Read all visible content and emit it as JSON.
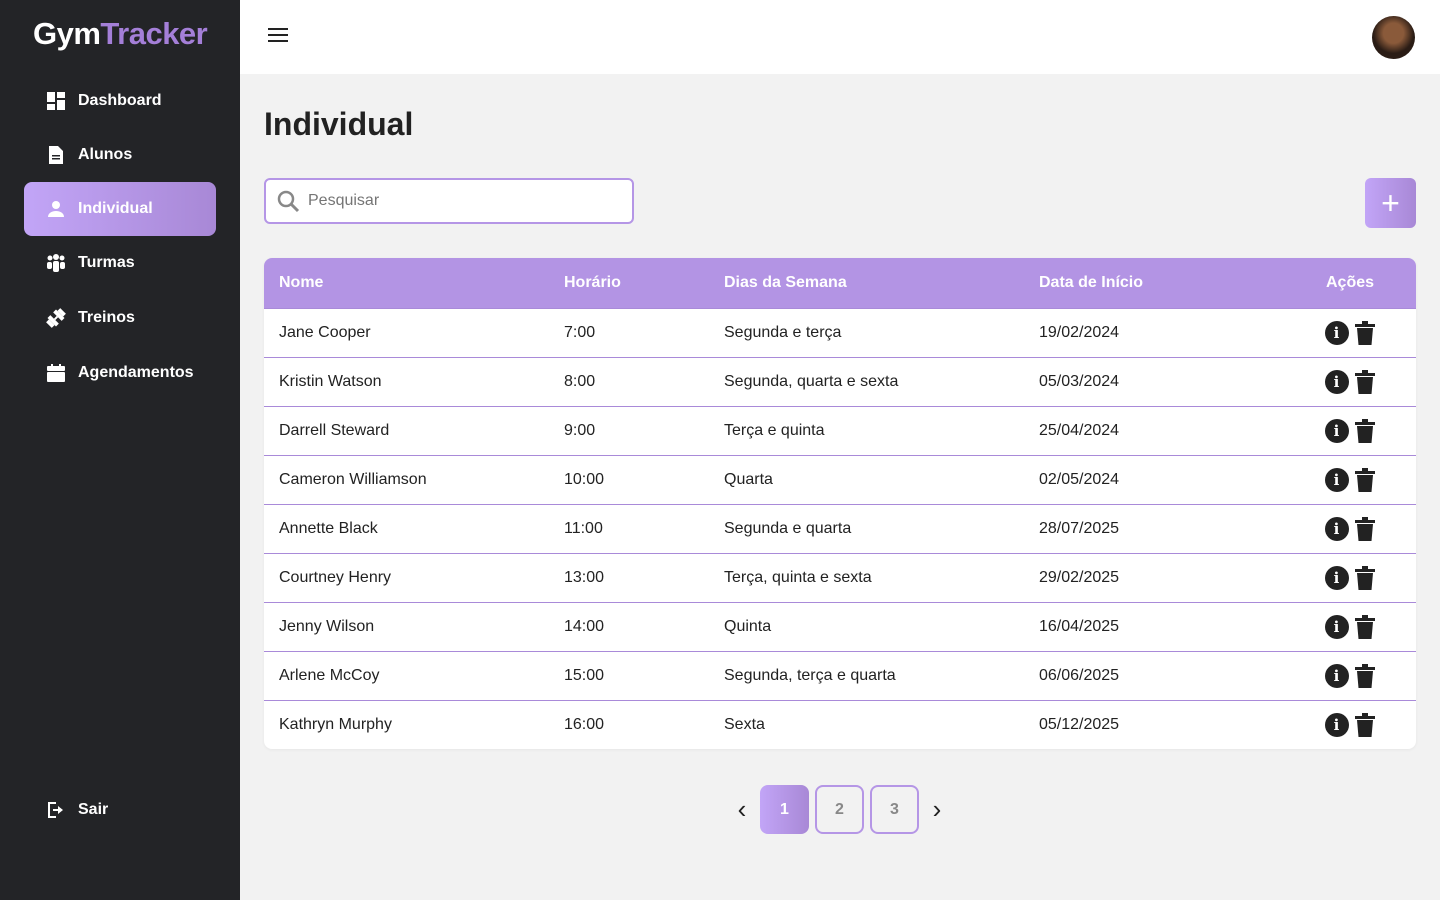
{
  "app": {
    "logo_main": "Gym",
    "logo_accent": "Tracker"
  },
  "sidebar": {
    "items": [
      {
        "label": "Dashboard",
        "icon": "dashboard-icon"
      },
      {
        "label": "Alunos",
        "icon": "document-icon"
      },
      {
        "label": "Individual",
        "icon": "person-icon",
        "active": true
      },
      {
        "label": "Turmas",
        "icon": "group-icon"
      },
      {
        "label": "Treinos",
        "icon": "dumbbell-icon"
      },
      {
        "label": "Agendamentos",
        "icon": "calendar-icon"
      }
    ],
    "logout": "Sair"
  },
  "page": {
    "title": "Individual",
    "search_placeholder": "Pesquisar",
    "add_label": "+"
  },
  "table": {
    "headers": [
      "Nome",
      "Horário",
      "Dias da Semana",
      "Data de Início",
      "Ações"
    ],
    "rows": [
      [
        "Jane Cooper",
        "7:00",
        "Segunda e terça",
        "19/02/2024"
      ],
      [
        "Kristin Watson",
        "8:00",
        "Segunda, quarta e sexta",
        "05/03/2024"
      ],
      [
        "Darrell Steward",
        "9:00",
        "Terça e quinta",
        "25/04/2024"
      ],
      [
        "Cameron Williamson",
        "10:00",
        "Quarta",
        "02/05/2024"
      ],
      [
        "Annette Black",
        "11:00",
        "Segunda e quarta",
        "28/07/2025"
      ],
      [
        "Courtney Henry",
        "13:00",
        "Terça, quinta e sexta",
        "29/02/2025"
      ],
      [
        "Jenny Wilson",
        "14:00",
        "Quinta",
        "16/04/2025"
      ],
      [
        "Arlene McCoy",
        "15:00",
        "Segunda, terça e quarta",
        "06/06/2025"
      ],
      [
        "Kathryn Murphy",
        "16:00",
        "Sexta",
        "05/12/2025"
      ]
    ]
  },
  "pagination": {
    "pages": [
      "1",
      "2",
      "3"
    ],
    "current": "1",
    "prev": "‹",
    "next": "›"
  },
  "colors": {
    "accent": "#b394e4",
    "sidebar": "#232427"
  }
}
